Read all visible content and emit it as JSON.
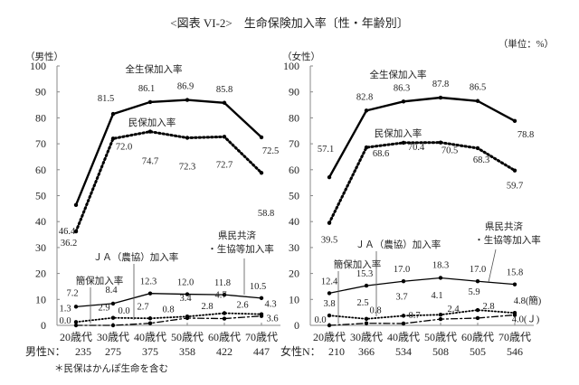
{
  "title": "<図表 VI-2>　生命保険加入率〔性・年齢別〕",
  "unit": "（単位：%）",
  "footnote": "＊民保はかんぽ生命を含む",
  "chart_data": [
    {
      "type": "line",
      "panel_label": "（男性）",
      "categories": [
        "20歳代",
        "30歳代",
        "40歳代",
        "50歳代",
        "60歳代",
        "70歳代"
      ],
      "n_label": "男性N：",
      "n_values": [
        "235",
        "275",
        "375",
        "358",
        "422",
        "447"
      ],
      "ylim": [
        0,
        100
      ],
      "yticks": [
        "0",
        "10",
        "20",
        "30",
        "40",
        "50",
        "60",
        "70",
        "80",
        "90",
        "100"
      ],
      "series": [
        {
          "name": "全生保加入率",
          "style": "solid-thick",
          "values": [
            46.4,
            81.5,
            86.1,
            86.9,
            85.8,
            72.5
          ],
          "labels": [
            "46.4",
            "81.5",
            "86.1",
            "86.9",
            "85.8",
            "72.5"
          ]
        },
        {
          "name": "民保加入率",
          "style": "dotted-thick",
          "values": [
            36.2,
            72.0,
            74.7,
            72.3,
            72.7,
            58.8
          ],
          "labels": [
            "36.2",
            "72.0",
            "74.7",
            "72.3",
            "72.7",
            "58.8"
          ]
        },
        {
          "name": "県民共済・生協等加入率",
          "name_lines": [
            "県民共済",
            "・生協等加入率"
          ],
          "style": "solid-thin",
          "values": [
            7.2,
            8.4,
            12.3,
            12.0,
            11.8,
            10.5
          ],
          "labels": [
            "7.2",
            "8.4",
            "12.3",
            "12.0",
            "11.8",
            "10.5"
          ]
        },
        {
          "name": "簡保加入率",
          "style": "dotted-thin",
          "values": [
            1.3,
            2.9,
            2.7,
            3.4,
            4.7,
            4.3
          ],
          "labels": [
            "1.3",
            "2.9",
            "2.7",
            "3.4",
            "4.7",
            "4.3"
          ]
        },
        {
          "name": "ＪＡ（農協）加入率",
          "style": "dashdot",
          "values": [
            0.0,
            0.0,
            0.8,
            2.8,
            2.6,
            3.6
          ],
          "labels": [
            "0.0",
            "0.0",
            "0.8",
            "2.8",
            "2.6",
            "3.6"
          ]
        }
      ]
    },
    {
      "type": "line",
      "panel_label": "（女性）",
      "categories": [
        "20歳代",
        "30歳代",
        "40歳代",
        "50歳代",
        "60歳代",
        "70歳代"
      ],
      "n_label": "女性N：",
      "n_values": [
        "210",
        "366",
        "534",
        "508",
        "505",
        "546"
      ],
      "ylim": [
        0,
        100
      ],
      "yticks": [
        "0",
        "10",
        "20",
        "30",
        "40",
        "50",
        "60",
        "70",
        "80",
        "90",
        "100"
      ],
      "series": [
        {
          "name": "全生保加入率",
          "style": "solid-thick",
          "values": [
            57.1,
            82.8,
            86.3,
            87.8,
            86.5,
            78.8
          ],
          "labels": [
            "57.1",
            "82.8",
            "86.3",
            "87.8",
            "86.5",
            "78.8"
          ]
        },
        {
          "name": "民保加入率",
          "style": "dotted-thick",
          "values": [
            39.5,
            68.6,
            70.4,
            70.5,
            68.3,
            59.7
          ],
          "labels": [
            "39.5",
            "68.6",
            "70.4",
            "70.5",
            "68.3",
            "59.7"
          ]
        },
        {
          "name": "県民共済・生協等加入率",
          "name_lines": [
            "県民共済",
            "・生協等加入率"
          ],
          "style": "solid-thin",
          "values": [
            12.4,
            15.3,
            17.0,
            18.3,
            17.0,
            15.8
          ],
          "labels": [
            "12.4",
            "15.3",
            "17.0",
            "18.3",
            "17.0",
            "15.8"
          ]
        },
        {
          "name": "簡保加入率",
          "style": "dotted-thin",
          "values": [
            3.8,
            2.5,
            3.7,
            4.1,
            5.9,
            4.8
          ],
          "labels": [
            "3.8",
            "2.5",
            "3.7",
            "4.1",
            "5.9",
            "4.8(簡)"
          ]
        },
        {
          "name": "ＪＡ（農協）加入率",
          "style": "dashdot",
          "values": [
            0.0,
            0.8,
            0.7,
            2.4,
            2.8,
            4.0
          ],
          "labels": [
            "0.0",
            "0.8",
            "0.7",
            "2.4",
            "2.8",
            "4.0(Ｊ)"
          ]
        }
      ]
    }
  ]
}
